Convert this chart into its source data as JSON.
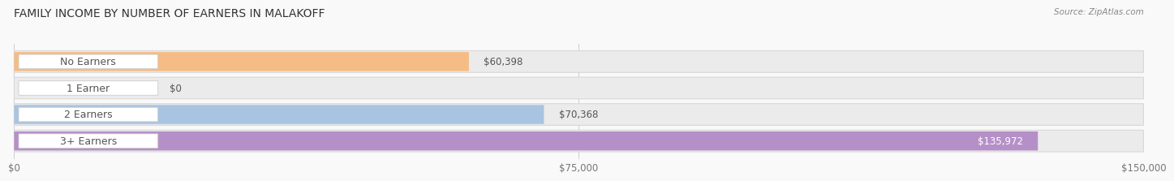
{
  "title": "FAMILY INCOME BY NUMBER OF EARNERS IN MALAKOFF",
  "source": "Source: ZipAtlas.com",
  "categories": [
    "No Earners",
    "1 Earner",
    "2 Earners",
    "3+ Earners"
  ],
  "values": [
    60398,
    0,
    70368,
    135972
  ],
  "bar_colors": [
    "#f5bc85",
    "#f0a0a0",
    "#a8c4e0",
    "#b590c8"
  ],
  "track_color": "#ebebeb",
  "track_edge_color": "#d8d8d8",
  "x_max": 150000,
  "x_ticks": [
    0,
    75000,
    150000
  ],
  "x_tick_labels": [
    "$0",
    "$75,000",
    "$150,000"
  ],
  "background_color": "#f9f9f9",
  "title_fontsize": 10,
  "label_fontsize": 9,
  "value_fontsize": 8.5,
  "pill_text_color": "#555555",
  "value_text_color_outside": "#555555",
  "value_text_color_inside": "#ffffff"
}
